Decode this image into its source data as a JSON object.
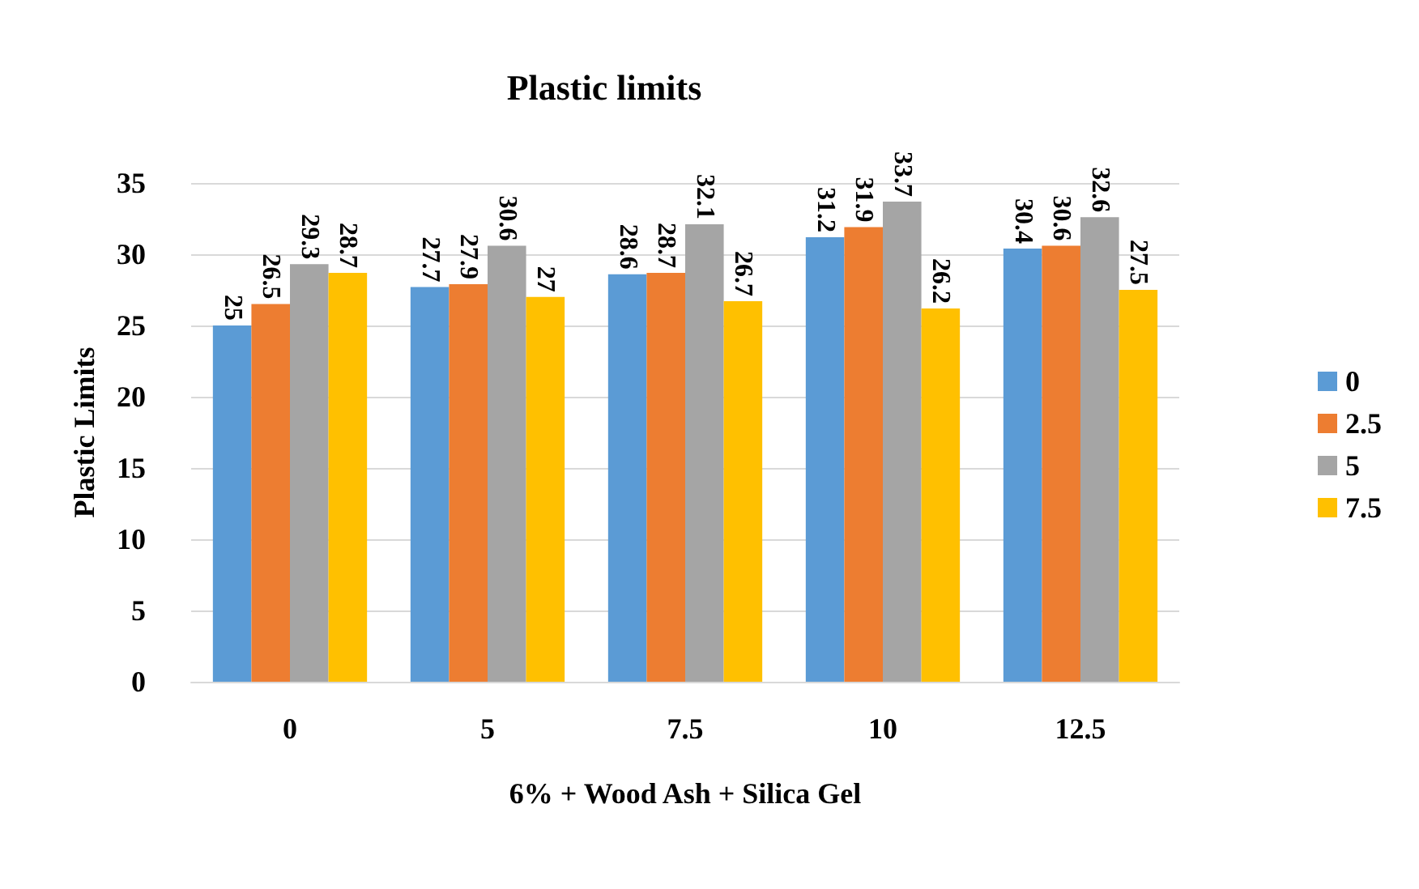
{
  "chart_data": {
    "type": "bar",
    "title": "Plastic limits",
    "xlabel": "6% + Wood Ash + Silica Gel",
    "ylabel": "Plastic Limits",
    "categories": [
      "0",
      "5",
      "7.5",
      "10",
      "12.5"
    ],
    "series": [
      {
        "name": "0",
        "color": "#5b9bd5",
        "values": [
          25,
          27.7,
          28.6,
          31.2,
          30.4
        ]
      },
      {
        "name": "2.5",
        "color": "#ed7d31",
        "values": [
          26.5,
          27.9,
          28.7,
          31.9,
          30.6
        ]
      },
      {
        "name": "5",
        "color": "#a5a5a5",
        "values": [
          29.3,
          30.6,
          32.1,
          33.7,
          32.6
        ]
      },
      {
        "name": "7.5",
        "color": "#ffc000",
        "values": [
          28.7,
          27,
          26.7,
          26.2,
          27.5
        ]
      }
    ],
    "ylim": [
      0,
      35
    ],
    "yticks": [
      0,
      5,
      10,
      15,
      20,
      25,
      30,
      35
    ],
    "grid": "y",
    "legend": "right",
    "data_labels": true
  }
}
